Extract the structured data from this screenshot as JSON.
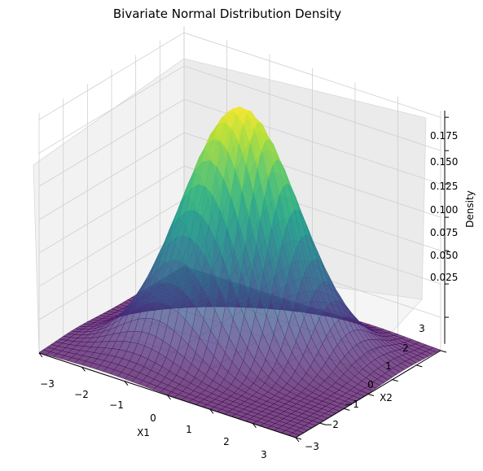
{
  "chart_data": {
    "type": "surface",
    "title": "Bivariate Normal Distribution Density",
    "xlabel": "X1",
    "ylabel": "X2",
    "zlabel": "Density",
    "xlim": [
      -3,
      3
    ],
    "ylim": [
      -3,
      3
    ],
    "zlim": [
      0,
      0.18
    ],
    "x_ticks": [
      "−3",
      "−2",
      "−1",
      "0",
      "1",
      "2",
      "3"
    ],
    "y_ticks": [
      "−3",
      "−2",
      "−1",
      "0",
      "1",
      "2",
      "3"
    ],
    "z_ticks": [
      "0.025",
      "0.050",
      "0.075",
      "0.100",
      "0.125",
      "0.150",
      "0.175"
    ],
    "distribution": {
      "mean": [
        0,
        0
      ],
      "covariance": [
        [
          1,
          0.5
        ],
        [
          0.5,
          1
        ]
      ],
      "peak_density": 0.1838
    },
    "colormap": "viridis",
    "surface_alpha": 0.7,
    "grid": true
  }
}
